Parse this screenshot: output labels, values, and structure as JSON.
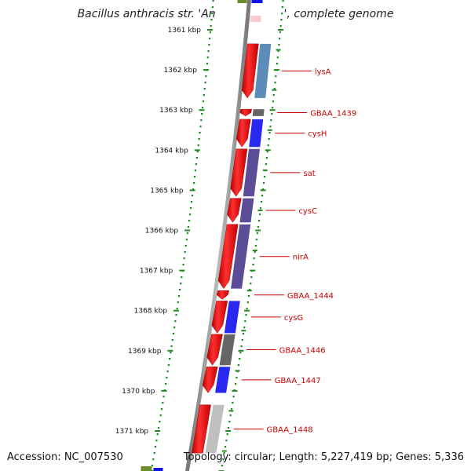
{
  "title": "Bacillus anthracis str. 'Ames Ancestor', complete genome",
  "accession": "Accession: NC_007530",
  "topology": "Topology: circular; Length: 5,227,419 bp; Genes: 5,336",
  "colors": {
    "forward_cds": "#ff0000",
    "tick_green": "#228822",
    "label_red": "#cc0000",
    "backbone": "#888888",
    "blue": "#1111ee",
    "steel_blue": "#4a7fb0",
    "purple": "#4a3a8c",
    "dark_grey": "#555555",
    "light_grey": "#b8b8b8",
    "olive": "#6b8c2a"
  },
  "ticks": [
    {
      "label": "1361 kbp"
    },
    {
      "label": "1362 kbp"
    },
    {
      "label": "1363 kbp"
    },
    {
      "label": "1364 kbp"
    },
    {
      "label": "1365 kbp"
    },
    {
      "label": "1366 kbp"
    },
    {
      "label": "1367 kbp"
    },
    {
      "label": "1368 kbp"
    },
    {
      "label": "1369 kbp"
    },
    {
      "label": "1370 kbp"
    },
    {
      "label": "1371 kbp"
    }
  ],
  "genes": [
    {
      "label": "lysA",
      "start_kbp": 1361.35,
      "end_kbp": 1362.7,
      "strand": "reverse",
      "annotation_color": "steel_blue"
    },
    {
      "label": "GBAA_1439",
      "start_kbp": 1362.98,
      "end_kbp": 1363.15,
      "strand": "reverse",
      "annotation_color": "dark_grey"
    },
    {
      "label": "cysH",
      "start_kbp": 1363.23,
      "end_kbp": 1363.92,
      "strand": "reverse",
      "annotation_color": "blue"
    },
    {
      "label": "sat",
      "start_kbp": 1363.97,
      "end_kbp": 1365.15,
      "strand": "reverse",
      "annotation_color": "purple"
    },
    {
      "label": "cysC",
      "start_kbp": 1365.2,
      "end_kbp": 1365.8,
      "strand": "reverse",
      "annotation_color": "purple"
    },
    {
      "label": "nirA",
      "start_kbp": 1365.85,
      "end_kbp": 1367.45,
      "strand": "reverse",
      "annotation_color": "purple"
    },
    {
      "label": "GBAA_1444",
      "start_kbp": 1367.5,
      "end_kbp": 1367.72,
      "strand": "reverse",
      "annotation_color": "none"
    },
    {
      "label": "cysG",
      "start_kbp": 1367.76,
      "end_kbp": 1368.56,
      "strand": "reverse",
      "annotation_color": "blue"
    },
    {
      "label": "GBAA_1446",
      "start_kbp": 1368.59,
      "end_kbp": 1369.36,
      "strand": "reverse",
      "annotation_color": "dark_grey"
    },
    {
      "label": "GBAA_1447",
      "start_kbp": 1369.4,
      "end_kbp": 1370.05,
      "strand": "reverse",
      "annotation_color": "blue"
    },
    {
      "label": "GBAA_1448",
      "start_kbp": 1370.35,
      "end_kbp": 1371.55,
      "strand": "none",
      "annotation_color": "light_grey"
    }
  ]
}
